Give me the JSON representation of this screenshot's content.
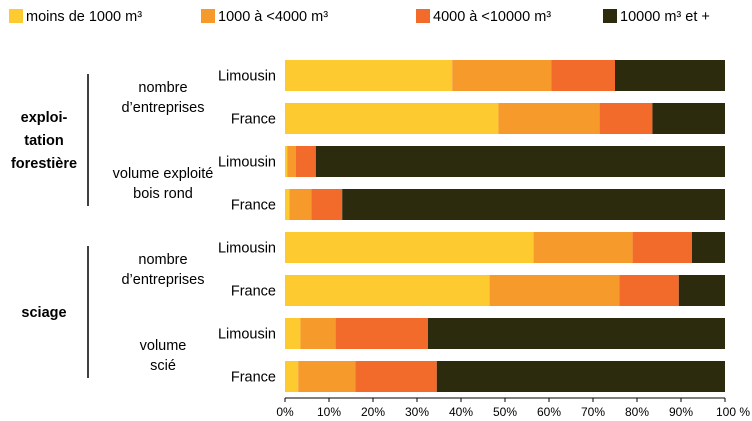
{
  "chart_data": {
    "type": "bar",
    "orientation": "horizontal",
    "stacked": "percent",
    "title": "",
    "xlabel": "",
    "ylabel": "",
    "xlim": [
      0,
      100
    ],
    "x_ticks": [
      "0%",
      "10%",
      "20%",
      "30%",
      "40%",
      "50%",
      "60%",
      "70%",
      "80%",
      "90%",
      "100 %"
    ],
    "legend_position": "top",
    "grid": false,
    "groups": [
      {
        "label_lines": [
          "exploi-",
          "tation",
          "forestière"
        ],
        "subgroups": [
          {
            "label_lines": [
              "nombre",
              "d’entreprises"
            ],
            "start": 0,
            "count": 2
          },
          {
            "label_lines": [
              "volume exploité",
              "bois rond"
            ],
            "start": 2,
            "count": 2
          }
        ]
      },
      {
        "label_lines": [
          "sciage"
        ],
        "subgroups": [
          {
            "label_lines": [
              "nombre",
              "d’entreprises"
            ],
            "start": 4,
            "count": 2
          },
          {
            "label_lines": [
              "volume",
              "scié"
            ],
            "start": 6,
            "count": 2
          }
        ]
      }
    ],
    "categories": [
      "Limousin",
      "France",
      "Limousin",
      "France",
      "Limousin",
      "France",
      "Limousin",
      "France"
    ],
    "series": [
      {
        "name": "moins de 1000 m³",
        "color": "#FDCA2F",
        "values": [
          38,
          48.5,
          0.5,
          1,
          56.5,
          46.5,
          3.5,
          3
        ]
      },
      {
        "name": "1000 à <4000 m³",
        "color": "#F79A2C",
        "values": [
          22.5,
          23,
          2,
          5,
          22.5,
          29.5,
          8,
          13
        ]
      },
      {
        "name": "4000 à <10000 m³",
        "color": "#F26B2B",
        "values": [
          14.5,
          12,
          4.5,
          7,
          13.5,
          13.5,
          21,
          18.5
        ]
      },
      {
        "name": "10000 m³ et +",
        "color": "#2C2B0E",
        "values": [
          25,
          16.5,
          93,
          87,
          7.5,
          10.5,
          67.5,
          65.5
        ]
      }
    ]
  }
}
